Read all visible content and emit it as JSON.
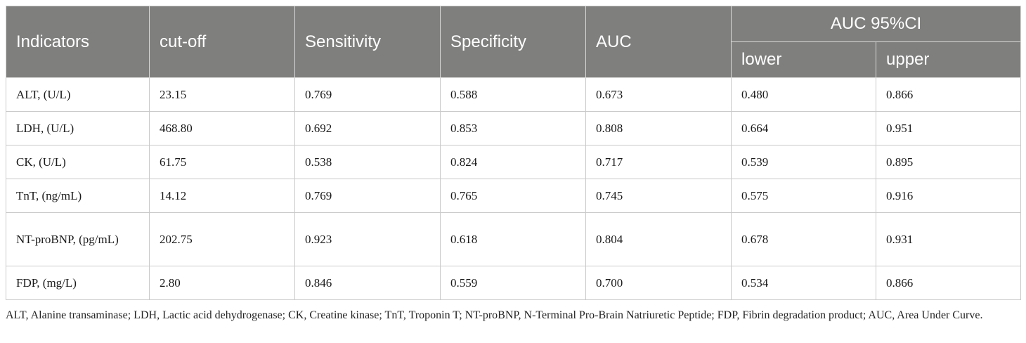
{
  "table": {
    "headers": {
      "indicators": "Indicators",
      "cutoff": "cut-off",
      "sensitivity": "Sensitivity",
      "specificity": "Specificity",
      "auc": "AUC",
      "ci_group": "AUC 95%CI",
      "lower": "lower",
      "upper": "upper"
    },
    "rows": [
      {
        "indicator": "ALT, (U/L)",
        "cutoff": "23.15",
        "sensitivity": "0.769",
        "specificity": "0.588",
        "auc": "0.673",
        "lower": "0.480",
        "upper": "0.866"
      },
      {
        "indicator": "LDH, (U/L)",
        "cutoff": "468.80",
        "sensitivity": "0.692",
        "specificity": "0.853",
        "auc": "0.808",
        "lower": "0.664",
        "upper": "0.951"
      },
      {
        "indicator": "CK, (U/L)",
        "cutoff": "61.75",
        "sensitivity": "0.538",
        "specificity": "0.824",
        "auc": "0.717",
        "lower": "0.539",
        "upper": "0.895"
      },
      {
        "indicator": "TnT, (ng/mL)",
        "cutoff": "14.12",
        "sensitivity": "0.769",
        "specificity": "0.765",
        "auc": "0.745",
        "lower": "0.575",
        "upper": "0.916"
      },
      {
        "indicator": "NT-proBNP, (pg/mL)",
        "cutoff": "202.75",
        "sensitivity": "0.923",
        "specificity": "0.618",
        "auc": "0.804",
        "lower": "0.678",
        "upper": "0.931"
      },
      {
        "indicator": "FDP, (mg/L)",
        "cutoff": "2.80",
        "sensitivity": "0.846",
        "specificity": "0.559",
        "auc": "0.700",
        "lower": "0.534",
        "upper": "0.866"
      }
    ]
  },
  "footnote": "ALT, Alanine transaminase; LDH, Lactic acid dehydrogenase; CK, Creatine kinase; TnT, Troponin T; NT-proBNP, N-Terminal Pro-Brain Natriuretic Peptide; FDP, Fibrin degradation product; AUC, Area Under Curve."
}
